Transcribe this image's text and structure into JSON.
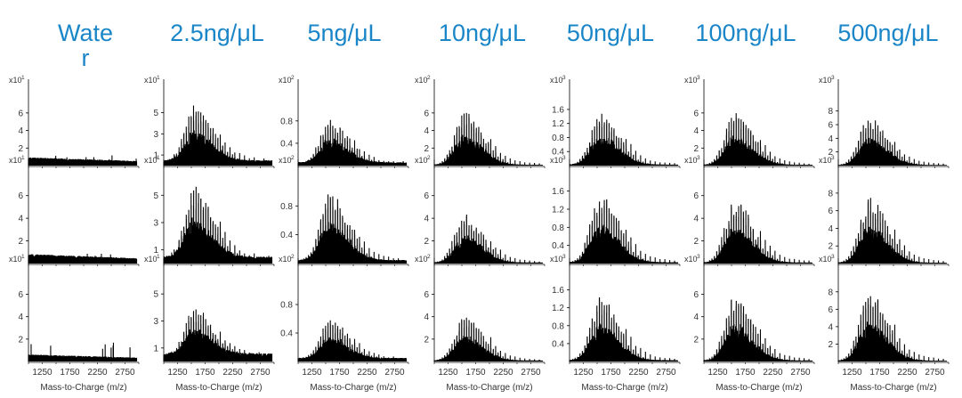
{
  "chart_data": {
    "type": "grid-of-spectra",
    "description_free": true,
    "title_color": "#1a86c8",
    "trace_color": "#000000",
    "xlabel": "Mass-to-Charge (m/z)",
    "x_ticks": [
      "1250",
      "1750",
      "2250",
      "2750"
    ],
    "xlim": [
      1000,
      3000
    ],
    "replicates": 3,
    "columns": [
      {
        "title": "Water",
        "exponent_label": "x10",
        "exponent": "1",
        "y_ticks": [
          2,
          4,
          6
        ],
        "ylim": [
          0,
          7
        ],
        "envelope_peak_x": 1400,
        "rows": [
          {
            "max_y": 1.2,
            "baseline": 0.9
          },
          {
            "max_y": 1.0,
            "baseline": 0.8
          },
          {
            "max_y": 1.8,
            "baseline": 0.6
          }
        ]
      },
      {
        "title": "2.5ng/μL",
        "exponent_label": "x10",
        "exponent": "1",
        "y_ticks": [
          1,
          3,
          5
        ],
        "ylim": [
          0,
          5.8
        ],
        "envelope_peak_x": 1560,
        "rows": [
          {
            "max_y": 5.3,
            "baseline": 0.5
          },
          {
            "max_y": 5.3,
            "baseline": 0.5
          },
          {
            "max_y": 3.5,
            "baseline": 0.6
          }
        ]
      },
      {
        "title": "5ng/μL",
        "exponent_label": "x10",
        "exponent": "2",
        "y_ticks": [
          0.4,
          0.8
        ],
        "ylim": [
          0,
          1.1
        ],
        "envelope_peak_x": 1580,
        "rows": [
          {
            "max_y": 0.78,
            "baseline": 0.06
          },
          {
            "max_y": 0.95,
            "baseline": 0.05
          },
          {
            "max_y": 0.55,
            "baseline": 0.05
          }
        ]
      },
      {
        "title": "10ng/μL",
        "exponent_label": "x10",
        "exponent": "2",
        "y_ticks": [
          2,
          4,
          6
        ],
        "ylim": [
          0,
          7
        ],
        "envelope_peak_x": 1550,
        "rows": [
          {
            "max_y": 6.1,
            "baseline": 0.1
          },
          {
            "max_y": 4.3,
            "baseline": 0.1
          },
          {
            "max_y": 4.0,
            "baseline": 0.1
          }
        ]
      },
      {
        "title": "50ng/μL",
        "exponent_label": "x10",
        "exponent": "3",
        "y_ticks": [
          0.4,
          0.8,
          1.2,
          1.6
        ],
        "ylim": [
          0,
          1.75
        ],
        "envelope_peak_x": 1560,
        "rows": [
          {
            "max_y": 1.5,
            "baseline": 0.03
          },
          {
            "max_y": 1.55,
            "baseline": 0.03
          },
          {
            "max_y": 1.45,
            "baseline": 0.03
          }
        ]
      },
      {
        "title": "100ng/μL",
        "exponent_label": "x10",
        "exponent": "3",
        "y_ticks": [
          2,
          4,
          6
        ],
        "ylim": [
          0,
          7
        ],
        "envelope_peak_x": 1560,
        "rows": [
          {
            "max_y": 6.0,
            "baseline": 0.1
          },
          {
            "max_y": 5.6,
            "baseline": 0.1
          },
          {
            "max_y": 5.8,
            "baseline": 0.1
          }
        ]
      },
      {
        "title": "500ng/μL",
        "exponent_label": "x10",
        "exponent": "3",
        "y_ticks": [
          2,
          4,
          6,
          8
        ],
        "ylim": [
          0,
          9
        ],
        "envelope_peak_x": 1560,
        "rows": [
          {
            "max_y": 7.0,
            "baseline": 0.1
          },
          {
            "max_y": 7.5,
            "baseline": 0.1
          },
          {
            "max_y": 8.0,
            "baseline": 0.1
          }
        ]
      }
    ]
  }
}
